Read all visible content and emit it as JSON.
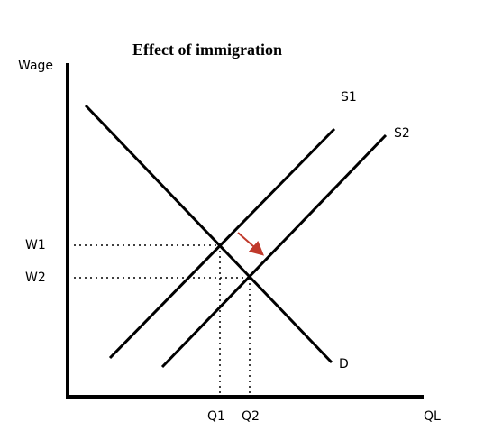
{
  "title": "Effect of immigration",
  "y_axis_label": "Wage",
  "x_axis_label": "QL",
  "curves": {
    "s1": "S1",
    "s2": "S2",
    "d": "D"
  },
  "wages": [
    "W1",
    "W2"
  ],
  "quantities": [
    "Q1",
    "Q2"
  ]
}
